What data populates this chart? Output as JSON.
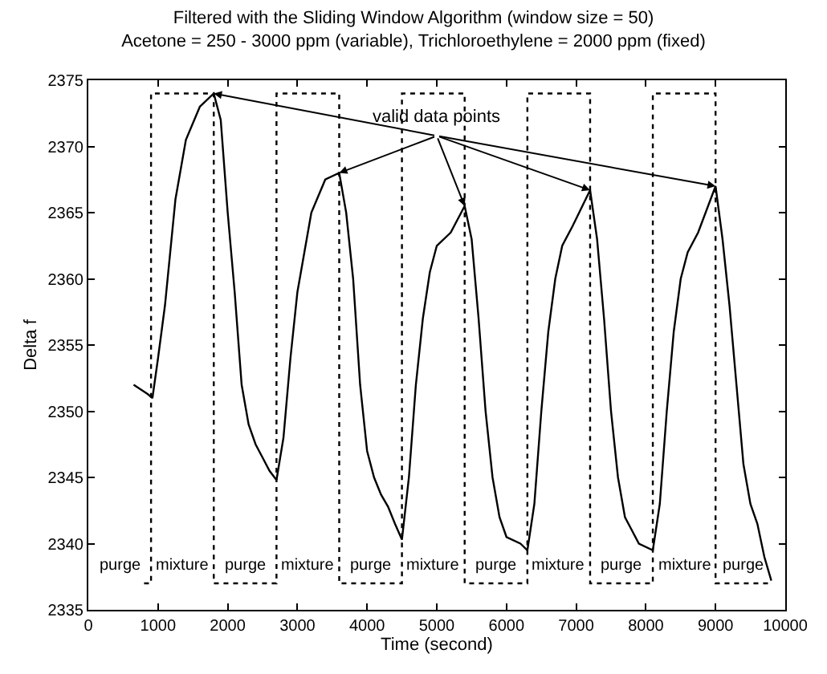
{
  "chart_data": {
    "type": "line",
    "title": "Filtered with the Sliding Window Algorithm (window size = 50)",
    "subtitle": "Acetone = 250 - 3000 ppm (variable), Trichloroethylene = 2000 ppm (fixed)",
    "xlabel": "Time (second)",
    "ylabel": "Delta f",
    "xlim": [
      0,
      10000
    ],
    "xticks": [
      0,
      1000,
      2000,
      3000,
      4000,
      5000,
      6000,
      7000,
      8000,
      9000,
      10000
    ],
    "ylim": [
      2335,
      2375
    ],
    "yticks": [
      2335,
      2340,
      2345,
      2350,
      2355,
      2360,
      2365,
      2370,
      2375
    ],
    "marker": "none",
    "series": [
      {
        "color": "#000000",
        "line_style": "solid",
        "x": [
          650,
          850,
          920,
          1000,
          1100,
          1250,
          1400,
          1600,
          1800,
          1900,
          2000,
          2100,
          2200,
          2300,
          2400,
          2500,
          2600,
          2700,
          2800,
          2900,
          3000,
          3100,
          3200,
          3400,
          3600,
          3700,
          3800,
          3900,
          4000,
          4100,
          4200,
          4300,
          4400,
          4500,
          4600,
          4700,
          4800,
          4900,
          5000,
          5200,
          5400,
          5500,
          5600,
          5700,
          5800,
          5900,
          6000,
          6200,
          6300,
          6400,
          6500,
          6600,
          6700,
          6800,
          6950,
          7200,
          7300,
          7400,
          7500,
          7600,
          7700,
          7800,
          7900,
          8100,
          8200,
          8300,
          8400,
          8500,
          8600,
          8750,
          9000,
          9100,
          9200,
          9300,
          9400,
          9500,
          9600,
          9700,
          9800
        ],
        "values": [
          2352,
          2351.3,
          2351,
          2354,
          2358,
          2366,
          2370.5,
          2373,
          2374,
          2372,
          2365,
          2359,
          2352,
          2349,
          2347.5,
          2346.5,
          2345.5,
          2344.8,
          2348,
          2354,
          2359,
          2362,
          2365,
          2367.5,
          2368,
          2365,
          2360,
          2352,
          2347,
          2345,
          2343.7,
          2342.8,
          2341.5,
          2340.3,
          2345,
          2352,
          2357,
          2360.5,
          2362.5,
          2363.5,
          2365.5,
          2363,
          2357,
          2350,
          2345,
          2342,
          2340.5,
          2340,
          2339.5,
          2343,
          2350,
          2356,
          2360,
          2362.5,
          2364,
          2366.7,
          2363,
          2357,
          2350,
          2345,
          2342,
          2341,
          2340,
          2339.5,
          2343,
          2350,
          2356,
          2360,
          2362,
          2363.5,
          2367,
          2363,
          2358,
          2352,
          2346,
          2343,
          2341.5,
          2339,
          2337.2
        ]
      },
      {
        "color": "#000000",
        "line_style": "dotted",
        "x": [
          800,
          900,
          900,
          1800,
          1800,
          2700,
          2700,
          3600,
          3600,
          4500,
          4500,
          5400,
          5400,
          6300,
          6300,
          7200,
          7200,
          8100,
          8100,
          9000,
          9000,
          9800
        ],
        "values": [
          2337,
          2337,
          2374,
          2374,
          2337,
          2337,
          2374,
          2374,
          2337,
          2337,
          2374,
          2374,
          2337,
          2337,
          2374,
          2374,
          2337,
          2337,
          2374,
          2374,
          2337,
          2337
        ]
      }
    ],
    "annotations": [
      {
        "text": "valid data points",
        "x": 1800,
        "y": 2374
      },
      "purge",
      "mixture",
      "purge",
      "mixture",
      "purge",
      "mixture",
      "purge",
      "mixture",
      "purge",
      "mixture",
      "purge"
    ]
  }
}
